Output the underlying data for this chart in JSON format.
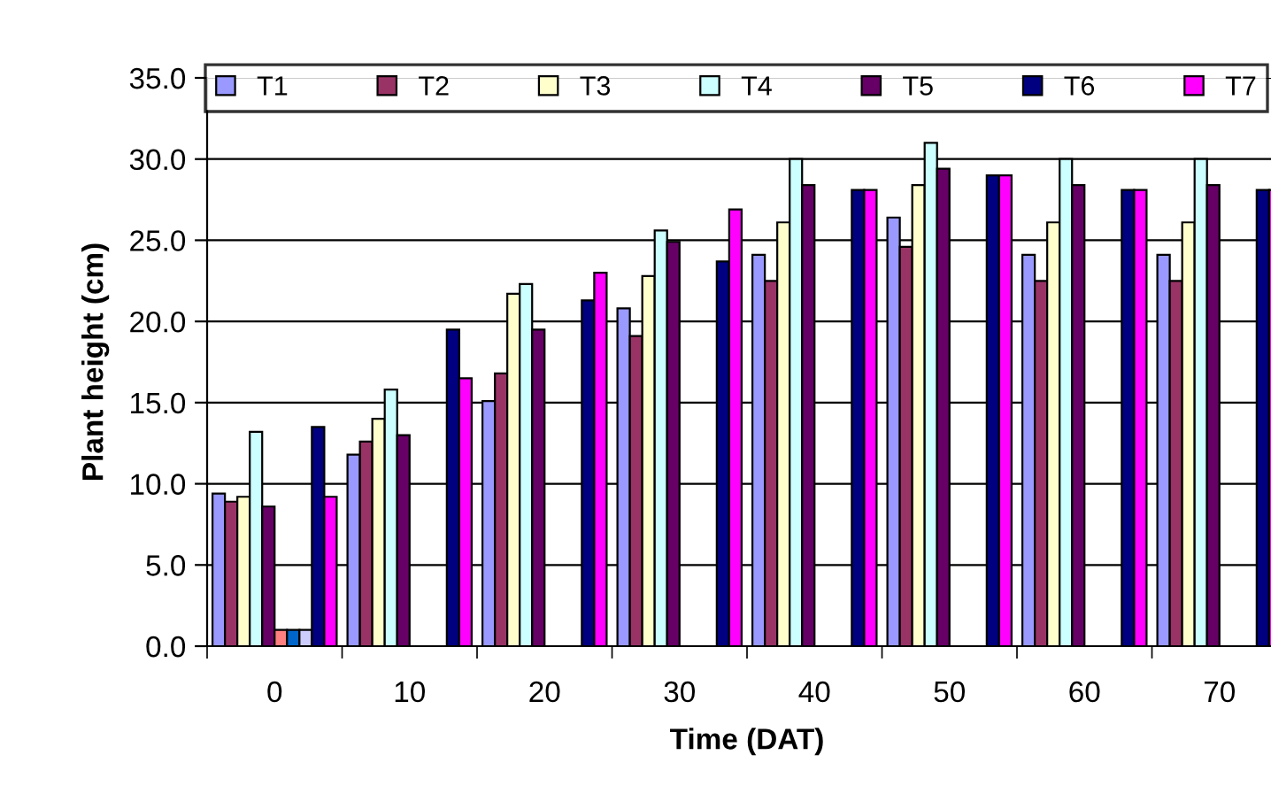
{
  "chart_data": {
    "type": "bar",
    "xlabel": "Time (DAT)",
    "ylabel": "Plant height (cm)",
    "categories": [
      "0",
      "10",
      "20",
      "30",
      "40",
      "50",
      "60",
      "70"
    ],
    "series": [
      {
        "name": "T1",
        "color": "#9999ff",
        "values": [
          9.4,
          11.8,
          15.1,
          20.8,
          24.1,
          26.4,
          24.1,
          24.1
        ]
      },
      {
        "name": "T2",
        "color": "#993366",
        "values": [
          8.9,
          12.6,
          16.8,
          19.1,
          22.5,
          24.6,
          22.5,
          22.5
        ]
      },
      {
        "name": "T3",
        "color": "#ffffcc",
        "values": [
          9.2,
          14.0,
          21.7,
          22.8,
          26.1,
          28.4,
          26.1,
          26.1
        ]
      },
      {
        "name": "T4",
        "color": "#ccffff",
        "values": [
          13.2,
          15.8,
          22.3,
          25.6,
          30.0,
          31.0,
          30.0,
          30.0
        ]
      },
      {
        "name": "T5",
        "color": "#660066",
        "values": [
          8.6,
          13.0,
          19.5,
          24.9,
          28.4,
          29.4,
          28.4,
          28.4
        ]
      },
      {
        "color": "#ff8080",
        "values": [
          1.0,
          null,
          null,
          null,
          null,
          null,
          null,
          null
        ]
      },
      {
        "color": "#0066cc",
        "values": [
          1.0,
          null,
          null,
          null,
          null,
          null,
          null,
          null
        ]
      },
      {
        "color": "#ccccff",
        "values": [
          1.0,
          null,
          null,
          null,
          null,
          null,
          null,
          null
        ]
      },
      {
        "name": "T6",
        "color": "#000080",
        "values": [
          13.5,
          19.5,
          21.3,
          23.7,
          28.1,
          29.0,
          28.1,
          28.1
        ]
      },
      {
        "name": "T7",
        "color": "#ff00ff",
        "values": [
          9.2,
          16.5,
          23.0,
          26.9,
          28.1,
          29.0,
          28.1,
          28.1
        ]
      }
    ],
    "ylim": [
      0,
      35
    ],
    "yticks": [
      {
        "value": 0,
        "label": "0.0"
      },
      {
        "value": 5,
        "label": "5.0"
      },
      {
        "value": 10,
        "label": "10.0"
      },
      {
        "value": 15,
        "label": "15.0"
      },
      {
        "value": 20,
        "label": "20.0"
      },
      {
        "value": 25,
        "label": "25.0"
      },
      {
        "value": 30,
        "label": "30.0"
      },
      {
        "value": 35,
        "label": "35.0"
      }
    ],
    "grid": "y",
    "legend": "top"
  }
}
